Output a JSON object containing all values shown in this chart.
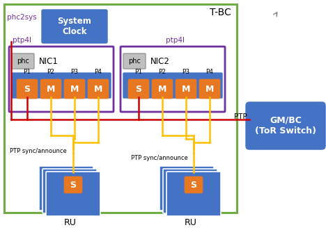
{
  "title": "T-BC",
  "bg_color": "#ffffff",
  "blue": "#4472c4",
  "orange": "#e87722",
  "purple": "#7030a0",
  "red": "#cc0000",
  "gold": "#ffc000",
  "gray_fc": "#bfbfbf",
  "gray_ec": "#999999",
  "green": "#70ad47",
  "system_clock_label": "System\nClock",
  "phc2sys_label": "phc2sys",
  "ptp4l_label": "ptp4l",
  "nic1_label": "NIC1",
  "nic2_label": "NIC2",
  "port_labels": [
    "P1",
    "P2",
    "P3",
    "P4"
  ],
  "gmbc_label": "GM/BC\n(ToR Switch)",
  "ptp_label": "PTP",
  "ptp_sync_label": "PTP sync/announce",
  "ru_label": "RU",
  "fig_w": 4.68,
  "fig_h": 3.44,
  "dpi": 100
}
